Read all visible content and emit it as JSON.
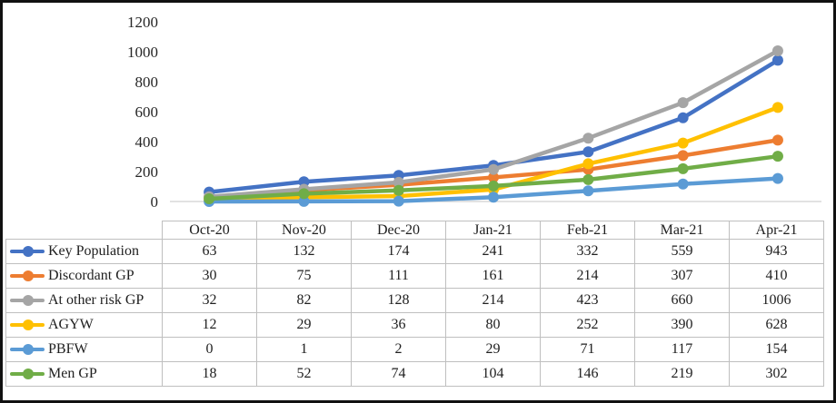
{
  "chart_data": {
    "type": "line",
    "title": "",
    "xlabel": "",
    "ylabel": "",
    "categories": [
      "Oct-20",
      "Nov-20",
      "Dec-20",
      "Jan-21",
      "Feb-21",
      "Mar-21",
      "Apr-21"
    ],
    "series": [
      {
        "name": "Key Population",
        "color": "#4472C4",
        "values": [
          63,
          132,
          174,
          241,
          332,
          559,
          943
        ]
      },
      {
        "name": "Discordant GP",
        "color": "#ED7D31",
        "values": [
          30,
          75,
          111,
          161,
          214,
          307,
          410
        ]
      },
      {
        "name": "At other risk GP",
        "color": "#A5A5A5",
        "values": [
          32,
          82,
          128,
          214,
          423,
          660,
          1006
        ]
      },
      {
        "name": "AGYW",
        "color": "#FFC000",
        "values": [
          12,
          29,
          36,
          80,
          252,
          390,
          628
        ]
      },
      {
        "name": "PBFW",
        "color": "#5B9BD5",
        "values": [
          0,
          1,
          2,
          29,
          71,
          117,
          154
        ]
      },
      {
        "name": "Men GP",
        "color": "#70AD47",
        "values": [
          18,
          52,
          74,
          104,
          146,
          219,
          302
        ]
      }
    ],
    "ylim": [
      0,
      1200
    ],
    "yticks": [
      0,
      200,
      400,
      600,
      800,
      1000,
      1200
    ],
    "grid": false,
    "marker": "circle",
    "legend_position": "data-table-left-column"
  },
  "colors": {
    "axis_line": "#D9D9D9",
    "table_border": "#BFBFBF",
    "text": "#262626",
    "frame_border": "#111111",
    "background": "#FFFFFF"
  }
}
